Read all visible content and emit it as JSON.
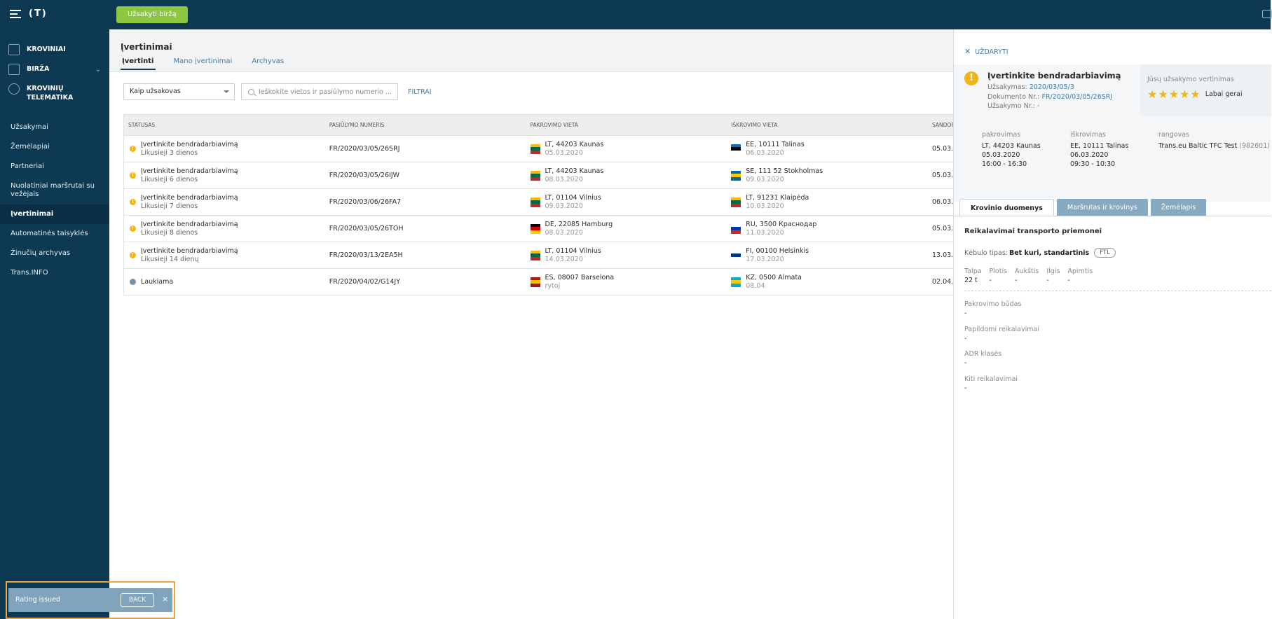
{
  "topbar": {
    "logo": "(T)",
    "order_button": "Užsakyti biržą"
  },
  "sidebar": {
    "main_items": [
      {
        "label": "KROVINIAI",
        "icon": "document-icon"
      },
      {
        "label": "BIRŽA",
        "icon": "box-icon"
      },
      {
        "label": "KROVINIŲ TELEMATIKA",
        "icon": "satellite-icon"
      }
    ],
    "sub_items": [
      {
        "label": "Užsakymai"
      },
      {
        "label": "Žemėlapiai"
      },
      {
        "label": "Partneriai"
      },
      {
        "label": "Nuolatiniai maršrutai su vežėjais"
      },
      {
        "label": "Įvertinimai",
        "active": true
      },
      {
        "label": "Automatinės taisyklės"
      },
      {
        "label": "Žinučių archyvas"
      },
      {
        "label": "Trans.INFO"
      }
    ]
  },
  "page": {
    "title": "Įvertinimai",
    "tabs": [
      "Įvertinti",
      "Mano įvertinimai",
      "Archyvas"
    ],
    "role_select": "Kaip užsakovas",
    "search_placeholder": "Ieškokite vietos ir pasiūlymo numerio ...",
    "filters_link": "FILTRAI"
  },
  "table": {
    "headers": [
      "STATUSAS",
      "PASIŪLYMO NUMERIS",
      "PAKROVIMO VIETA",
      "IŠKROVIMO VIETA",
      "SANDOR"
    ],
    "rows": [
      {
        "status": "Įvertinkite bendradarbiavimą",
        "remaining": "Likusieji 3 dienos",
        "offer": "FR/2020/03/05/26SRJ",
        "load": "LT, 44203 Kaunas",
        "load_date": "05.03.2020",
        "load_flag": "LT",
        "unload": "EE, 10111 Talinas",
        "unload_date": "06.03.2020",
        "unload_flag": "EE",
        "deal": "05.03."
      },
      {
        "status": "Įvertinkite bendradarbiavimą",
        "remaining": "Likusieji 6 dienos",
        "offer": "FR/2020/03/05/26IJW",
        "load": "LT, 44203 Kaunas",
        "load_date": "08.03.2020",
        "load_flag": "LT",
        "unload": "SE, 111 52 Stokholmas",
        "unload_date": "09.03.2020",
        "unload_flag": "SE",
        "deal": "05.03."
      },
      {
        "status": "Įvertinkite bendradarbiavimą",
        "remaining": "Likusieji 7 dienos",
        "offer": "FR/2020/03/06/26FA7",
        "load": "LT, 01104 Vilnius",
        "load_date": "09.03.2020",
        "load_flag": "LT",
        "unload": "LT, 91231 Klaipėda",
        "unload_date": "10.03.2020",
        "unload_flag": "LT",
        "deal": "06.03."
      },
      {
        "status": "Įvertinkite bendradarbiavimą",
        "remaining": "Likusieji 8 dienos",
        "offer": "FR/2020/03/05/26TOH",
        "load": "DE, 22085 Hamburg",
        "load_date": "08.03.2020",
        "load_flag": "DE",
        "unload": "RU, 3500 Краснодар",
        "unload_date": "11.03.2020",
        "unload_flag": "RU",
        "deal": "05.03."
      },
      {
        "status": "Įvertinkite bendradarbiavimą",
        "remaining": "Likusieji 14 dienų",
        "offer": "FR/2020/03/13/2EA5H",
        "load": "LT, 01104 Vilnius",
        "load_date": "14.03.2020",
        "load_flag": "LT",
        "unload": "FI, 00100 Helsinkis",
        "unload_date": "17.03.2020",
        "unload_flag": "FI",
        "deal": "13.03."
      },
      {
        "status": "Laukiama",
        "remaining": "",
        "offer": "FR/2020/04/02/G14JY",
        "load": "ES, 08007 Barselona",
        "load_date": "rytoj",
        "load_flag": "ES",
        "unload": "KZ, 0500 Almata",
        "unload_date": "08.04",
        "unload_flag": "KZ",
        "deal": "02.04.",
        "pending": true
      }
    ]
  },
  "panel": {
    "close": "UŽDARYTI",
    "title": "Įvertinkite bendradarbiavimą",
    "order_label": "Užsakymas:",
    "order_value": "2020/03/05/3",
    "doc_label": "Dokumento Nr.:",
    "doc_value": "FR/2020/03/05/26SRJ",
    "order_no_label": "Užsakymo Nr.:",
    "order_no_value": "-",
    "rating_label": "Jūsų užsakymo vertinimas",
    "rating_value": 5,
    "rating_text": "Labai gerai",
    "loading": {
      "head": "pakrovimas",
      "place": "LT, 44203 Kaunas",
      "date": "05.03.2020",
      "time": "16:00 - 16:30"
    },
    "unloading": {
      "head": "iškrovimas",
      "place": "EE, 10111 Talinas",
      "date": "06.03.2020",
      "time": "09:30 - 10:30"
    },
    "shipper": {
      "head": "rangovas",
      "name": "Trans.eu Baltic TFC Test",
      "id": "(982601)"
    },
    "tabs": [
      "Krovinio duomenys",
      "Maršrutas ir krovinys",
      "Žemėlapis"
    ],
    "section_title": "Reikalavimai transporto priemonei",
    "body_label": "Kėbulo tipas:",
    "body_value": "Bet kuri, standartinis",
    "ftl": "FTL",
    "dims": [
      {
        "k": "Talpa",
        "v": "22 t"
      },
      {
        "k": "Plotis",
        "v": "-"
      },
      {
        "k": "Aukštis",
        "v": "-"
      },
      {
        "k": "Ilgis",
        "v": "-"
      },
      {
        "k": "Apimtis",
        "v": "-"
      }
    ],
    "requirements": [
      {
        "k": "Pakrovimo būdas",
        "v": "-"
      },
      {
        "k": "Papildomi reikalavimai",
        "v": "-"
      },
      {
        "k": "ADR klasės",
        "v": "-"
      },
      {
        "k": "Kiti reikalavimai",
        "v": "-"
      }
    ]
  },
  "toast": {
    "message": "Rating issued",
    "back": "BACK",
    "close": "×"
  },
  "flags": {
    "LT": [
      "#fdb913",
      "#006a44",
      "#c1272d"
    ],
    "EE": [
      "#0072ce",
      "#000000",
      "#ffffff"
    ],
    "SE": [
      "#006aa7",
      "#fecc00",
      "#006aa7"
    ],
    "DE": [
      "#000000",
      "#dd0000",
      "#ffce00"
    ],
    "RU": [
      "#ffffff",
      "#0039a6",
      "#d52b1e"
    ],
    "FI": [
      "#ffffff",
      "#003580",
      "#ffffff"
    ],
    "ES": [
      "#aa151b",
      "#f1bf00",
      "#aa151b"
    ],
    "KZ": [
      "#00afca",
      "#fec50c",
      "#00afca"
    ]
  }
}
